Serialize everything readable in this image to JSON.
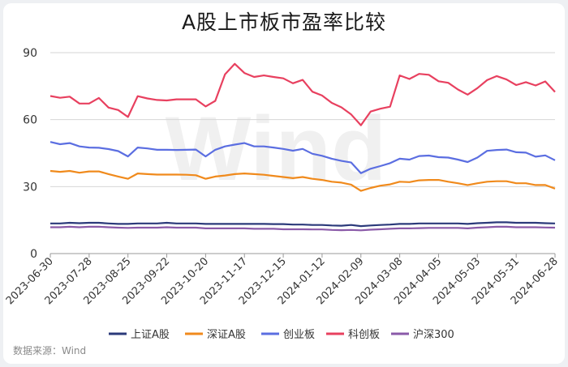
{
  "chart_data": {
    "type": "line",
    "title": "A股上市板市盈率比较",
    "source": "数据来源：Wind",
    "watermark": "Wind",
    "ylim": [
      0,
      90
    ],
    "yticks": [
      0,
      30,
      60,
      90
    ],
    "grid": true,
    "legend_position": "bottom",
    "xticks": [
      "2023-06-30",
      "2023-07-28",
      "2023-08-25",
      "2023-09-22",
      "2023-10-20",
      "2023-11-17",
      "2023-12-15",
      "2024-01-12",
      "2024-02-09",
      "2024-03-08",
      "2024-04-05",
      "2024-05-03",
      "2024-05-31",
      "2024-06-28"
    ],
    "x": [
      "2023-06-30",
      "2023-07-07",
      "2023-07-14",
      "2023-07-21",
      "2023-07-28",
      "2023-08-04",
      "2023-08-11",
      "2023-08-18",
      "2023-08-25",
      "2023-09-01",
      "2023-09-08",
      "2023-09-15",
      "2023-09-22",
      "2023-09-29",
      "2023-10-06",
      "2023-10-13",
      "2023-10-20",
      "2023-10-27",
      "2023-11-03",
      "2023-11-10",
      "2023-11-17",
      "2023-11-24",
      "2023-12-01",
      "2023-12-08",
      "2023-12-15",
      "2023-12-22",
      "2023-12-29",
      "2024-01-05",
      "2024-01-12",
      "2024-01-19",
      "2024-01-26",
      "2024-02-02",
      "2024-02-09",
      "2024-02-16",
      "2024-02-23",
      "2024-03-01",
      "2024-03-08",
      "2024-03-15",
      "2024-03-22",
      "2024-03-29",
      "2024-04-05",
      "2024-04-12",
      "2024-04-19",
      "2024-04-26",
      "2024-05-03",
      "2024-05-10",
      "2024-05-17",
      "2024-05-24",
      "2024-05-31",
      "2024-06-07",
      "2024-06-14",
      "2024-06-21",
      "2024-06-28"
    ],
    "series": [
      {
        "name": "上证A股",
        "color": "#2b3a7a",
        "values": [
          13.5,
          13.5,
          13.8,
          13.6,
          13.8,
          13.8,
          13.5,
          13.3,
          13.3,
          13.5,
          13.5,
          13.5,
          13.8,
          13.5,
          13.5,
          13.5,
          13.3,
          13.3,
          13.3,
          13.3,
          13.3,
          13.3,
          13.3,
          13.2,
          13.2,
          13.0,
          13.0,
          12.8,
          12.8,
          12.6,
          12.5,
          12.8,
          12.3,
          12.6,
          12.8,
          13.0,
          13.3,
          13.3,
          13.5,
          13.5,
          13.5,
          13.5,
          13.5,
          13.3,
          13.6,
          13.8,
          14.0,
          14.0,
          13.8,
          13.8,
          13.8,
          13.6,
          13.5
        ]
      },
      {
        "name": "深证A股",
        "color": "#f08a1c",
        "values": [
          37.0,
          36.6,
          37.0,
          36.2,
          36.8,
          36.8,
          35.6,
          34.5,
          33.5,
          35.9,
          35.6,
          35.4,
          35.4,
          35.4,
          35.3,
          35.1,
          33.5,
          34.5,
          35.0,
          35.6,
          35.9,
          35.6,
          35.3,
          34.8,
          34.3,
          33.8,
          34.3,
          33.5,
          33.0,
          32.2,
          31.8,
          30.9,
          28.1,
          29.4,
          30.4,
          31.0,
          32.2,
          32.0,
          32.8,
          33.0,
          33.0,
          32.2,
          31.5,
          30.7,
          31.5,
          32.2,
          32.4,
          32.4,
          31.5,
          31.5,
          30.7,
          30.7,
          29.1
        ]
      },
      {
        "name": "创业板",
        "color": "#5b6ee1",
        "values": [
          50.0,
          49.0,
          49.5,
          48.0,
          47.5,
          47.4,
          46.8,
          45.9,
          43.5,
          47.5,
          47.1,
          46.5,
          46.5,
          46.4,
          46.5,
          46.6,
          43.5,
          46.5,
          48.0,
          48.8,
          49.5,
          48.0,
          48.0,
          47.5,
          46.9,
          46.1,
          46.9,
          44.7,
          43.8,
          42.5,
          41.5,
          40.8,
          36.0,
          38.0,
          39.2,
          40.5,
          42.5,
          42.1,
          43.7,
          43.9,
          43.2,
          43.0,
          42.1,
          41.0,
          43.0,
          46.0,
          46.4,
          46.6,
          45.4,
          45.2,
          43.4,
          44.0,
          41.8
        ]
      },
      {
        "name": "科创板",
        "color": "#e8405f",
        "values": [
          70.6,
          69.8,
          70.3,
          67.2,
          67.2,
          69.7,
          65.4,
          64.3,
          61.2,
          70.5,
          69.5,
          68.8,
          68.6,
          69.1,
          69.1,
          69.1,
          65.9,
          68.4,
          80.3,
          85.0,
          80.9,
          79.1,
          79.8,
          79.1,
          78.5,
          76.3,
          77.8,
          72.5,
          70.8,
          67.5,
          65.5,
          62.3,
          57.5,
          63.6,
          64.9,
          65.8,
          79.8,
          78.2,
          80.5,
          80.1,
          77.2,
          76.5,
          73.5,
          71.2,
          74.1,
          77.7,
          79.5,
          78.0,
          75.5,
          76.8,
          75.3,
          77.1,
          72.4
        ]
      },
      {
        "name": "沪深300",
        "color": "#8a5aa8",
        "values": [
          11.8,
          11.8,
          12.0,
          11.8,
          12.0,
          12.0,
          11.8,
          11.6,
          11.5,
          11.6,
          11.6,
          11.6,
          11.8,
          11.6,
          11.6,
          11.6,
          11.3,
          11.3,
          11.3,
          11.3,
          11.3,
          11.1,
          11.1,
          11.1,
          10.9,
          10.9,
          10.9,
          10.8,
          10.8,
          10.6,
          10.5,
          10.6,
          10.4,
          10.7,
          10.9,
          11.1,
          11.3,
          11.3,
          11.4,
          11.5,
          11.5,
          11.5,
          11.5,
          11.3,
          11.6,
          11.8,
          12.0,
          12.0,
          11.8,
          11.8,
          11.8,
          11.7,
          11.6
        ]
      }
    ]
  }
}
